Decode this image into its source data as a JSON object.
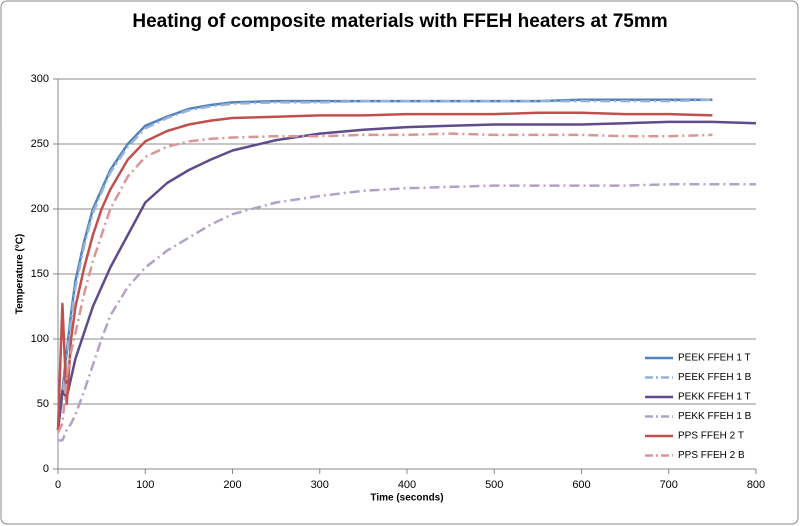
{
  "chart_data": {
    "type": "line",
    "title": "Heating of composite materials with FFEH heaters at 75mm",
    "x_label": "Time (seconds)",
    "y_label": "Temperature (°C)",
    "x": [
      0,
      5,
      10,
      15,
      20,
      30,
      40,
      50,
      60,
      80,
      100,
      125,
      150,
      175,
      200,
      250,
      300,
      350,
      400,
      450,
      500,
      550,
      600,
      650,
      700,
      750,
      800
    ],
    "series": [
      {
        "name": "PEEK FFEH 1 T",
        "color": "#4f81bd",
        "style": "solid",
        "values": [
          30,
          60,
          90,
          120,
          145,
          175,
          200,
          215,
          230,
          250,
          264,
          271,
          277,
          280,
          282,
          283,
          283,
          283,
          283,
          283,
          283,
          283,
          284,
          284,
          284,
          284,
          null
        ]
      },
      {
        "name": "PEEK FFEH 1 B",
        "color": "#95b3d7",
        "style": "dashdot",
        "values": [
          30,
          55,
          85,
          115,
          140,
          172,
          197,
          213,
          228,
          248,
          262,
          270,
          276,
          279,
          281,
          282,
          282,
          283,
          283,
          283,
          283,
          283,
          283,
          283,
          283,
          284,
          null
        ]
      },
      {
        "name": "PEKK FFEH 1 T",
        "color": "#5f4b8b",
        "style": "solid",
        "values": [
          30,
          60,
          55,
          70,
          85,
          105,
          125,
          140,
          155,
          180,
          205,
          220,
          230,
          238,
          245,
          253,
          258,
          261,
          263,
          264,
          265,
          265,
          265,
          266,
          267,
          267,
          266
        ]
      },
      {
        "name": "PEKK FFEH 1 B",
        "color": "#b3a2c7",
        "style": "dashdot",
        "values": [
          22,
          22,
          30,
          35,
          42,
          60,
          80,
          100,
          118,
          140,
          155,
          168,
          178,
          188,
          196,
          205,
          210,
          214,
          216,
          217,
          218,
          218,
          218,
          218,
          219,
          219,
          219
        ]
      },
      {
        "name": "PPS FFEH 2 T",
        "color": "#c0504d",
        "style": "solid",
        "values": [
          30,
          127,
          50,
          100,
          125,
          155,
          180,
          200,
          215,
          238,
          252,
          260,
          265,
          268,
          270,
          271,
          272,
          272,
          273,
          273,
          273,
          274,
          274,
          273,
          273,
          272,
          null
        ]
      },
      {
        "name": "PPS FFEH 2 B",
        "color": "#d99694",
        "style": "dashdot",
        "values": [
          28,
          35,
          70,
          90,
          105,
          135,
          160,
          180,
          200,
          225,
          240,
          248,
          252,
          254,
          255,
          256,
          256,
          257,
          257,
          258,
          257,
          257,
          257,
          256,
          256,
          257,
          null
        ]
      }
    ],
    "xlim": [
      0,
      800
    ],
    "xticks": [
      0,
      100,
      200,
      300,
      400,
      500,
      600,
      700,
      800
    ],
    "ylim": [
      0,
      300
    ],
    "yticks": [
      0,
      50,
      100,
      150,
      200,
      250,
      300
    ],
    "grid": true,
    "legend": "right"
  }
}
